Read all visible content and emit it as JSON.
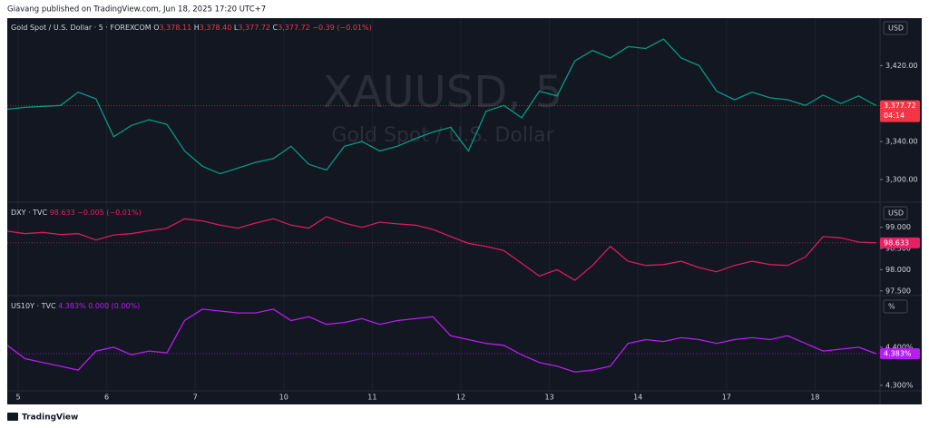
{
  "header": {
    "publisher": "Giavang published on TradingView.com, Jun 18, 2025 17:20 UTC+7"
  },
  "footer": {
    "brand": "TradingView"
  },
  "x_labels": [
    "5",
    "6",
    "7",
    "10",
    "11",
    "12",
    "13",
    "14",
    "17",
    "18"
  ],
  "chart_data": [
    {
      "type": "line",
      "title": "Gold Spot / U.S. Dollar · 5 · FOREXCOM",
      "watermark": "XAUUSD, 5",
      "watermark_subtitle": "Gold Spot / U.S. Dollar",
      "ohlc": [
        {
          "name": "O",
          "label": "3,378.11"
        },
        {
          "name": "H",
          "label": "3,378.40"
        },
        {
          "name": "L",
          "label": "3,377.72"
        },
        {
          "name": "C",
          "label": "3,377.72"
        }
      ],
      "change": "−0.39 (−0.01%)",
      "unit": "USD",
      "countdown": "04:14",
      "last_price": {
        "value": 3377.72,
        "label": "3,377.72"
      },
      "color": "#089981",
      "label_color": "#f23645",
      "ylim": [
        3277,
        3470
      ],
      "yticks": [
        {
          "value": 3420,
          "label": "3,420.00"
        },
        {
          "value": 3340,
          "label": "3,340.00"
        },
        {
          "value": 3300,
          "label": "3,300.00"
        }
      ],
      "values": [
        3374,
        3376,
        3377,
        3378,
        3392,
        3385,
        3345,
        3357,
        3363,
        3358,
        3330,
        3314,
        3306,
        3312,
        3318,
        3322,
        3335,
        3316,
        3310,
        3335,
        3340,
        3330,
        3335,
        3343,
        3350,
        3355,
        3330,
        3372,
        3378,
        3365,
        3393,
        3388,
        3425,
        3436,
        3428,
        3440,
        3438,
        3448,
        3428,
        3420,
        3393,
        3384,
        3392,
        3386,
        3384,
        3378,
        3389,
        3380,
        3388,
        3377.72
      ]
    },
    {
      "type": "line",
      "title": "DXY · TVC",
      "last_value": "98.633",
      "change": "−0.005 (−0.01%)",
      "unit": "USD",
      "last_price": {
        "value": 98.633,
        "label": "98.633"
      },
      "color": "#d81b60",
      "label_color": "#e91e63",
      "ylim": [
        97.41,
        99.57
      ],
      "yticks": [
        {
          "value": 99,
          "label": "99.000"
        },
        {
          "value": 98.5,
          "label": "98.500"
        },
        {
          "value": 98,
          "label": "98.000"
        },
        {
          "value": 97.5,
          "label": "97.500"
        }
      ],
      "values": [
        98.91,
        98.85,
        98.88,
        98.83,
        98.85,
        98.7,
        98.82,
        98.85,
        98.92,
        98.98,
        99.2,
        99.15,
        99.05,
        98.98,
        99.1,
        99.2,
        99.05,
        98.98,
        99.25,
        99.1,
        99.0,
        99.12,
        99.08,
        99.05,
        98.95,
        98.78,
        98.62,
        98.55,
        98.45,
        98.15,
        97.85,
        98.0,
        97.75,
        98.1,
        98.55,
        98.2,
        98.1,
        98.12,
        98.2,
        98.05,
        97.95,
        98.1,
        98.2,
        98.12,
        98.1,
        98.3,
        98.78,
        98.75,
        98.65,
        98.633
      ]
    },
    {
      "type": "line",
      "title": "US10Y · TVC",
      "last_value": "4.383%",
      "change": "0.000 (0.00%)",
      "unit": "%",
      "last_price": {
        "value": 4.383,
        "label": "4.383%"
      },
      "color": "#b71cf0",
      "label_color": "#b71cf0",
      "ylim": [
        4.288,
        4.533
      ],
      "yticks": [
        {
          "value": 4.4,
          "label": "4.400%"
        },
        {
          "value": 4.3,
          "label": "4.300%"
        }
      ],
      "values": [
        4.405,
        4.37,
        4.36,
        4.35,
        4.34,
        4.39,
        4.4,
        4.38,
        4.39,
        4.385,
        4.47,
        4.5,
        4.495,
        4.49,
        4.49,
        4.5,
        4.47,
        4.48,
        4.46,
        4.465,
        4.475,
        4.46,
        4.47,
        4.475,
        4.48,
        4.43,
        4.42,
        4.41,
        4.405,
        4.38,
        4.36,
        4.35,
        4.335,
        4.34,
        4.35,
        4.41,
        4.42,
        4.415,
        4.425,
        4.42,
        4.41,
        4.42,
        4.425,
        4.42,
        4.43,
        4.41,
        4.39,
        4.395,
        4.4,
        4.383
      ]
    }
  ]
}
